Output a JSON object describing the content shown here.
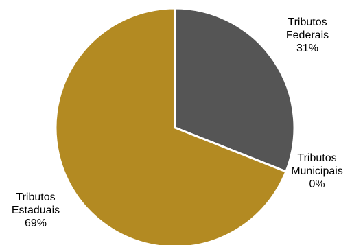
{
  "chart_data": {
    "type": "pie",
    "title": "",
    "slices": [
      {
        "label_lines": [
          "Tributos",
          "Federais"
        ],
        "value": 31,
        "value_label": "31%",
        "color": "#555555"
      },
      {
        "label_lines": [
          "Tributos",
          "Municipais"
        ],
        "value": 0,
        "value_label": "0%",
        "color": "#A5A5A5"
      },
      {
        "label_lines": [
          "Tributos",
          "Estaduais"
        ],
        "value": 69,
        "value_label": "69%",
        "color": "#B38A22"
      }
    ],
    "start_angle_deg": 0,
    "direction": "clockwise",
    "legend": "none",
    "data_labels": "outside"
  }
}
